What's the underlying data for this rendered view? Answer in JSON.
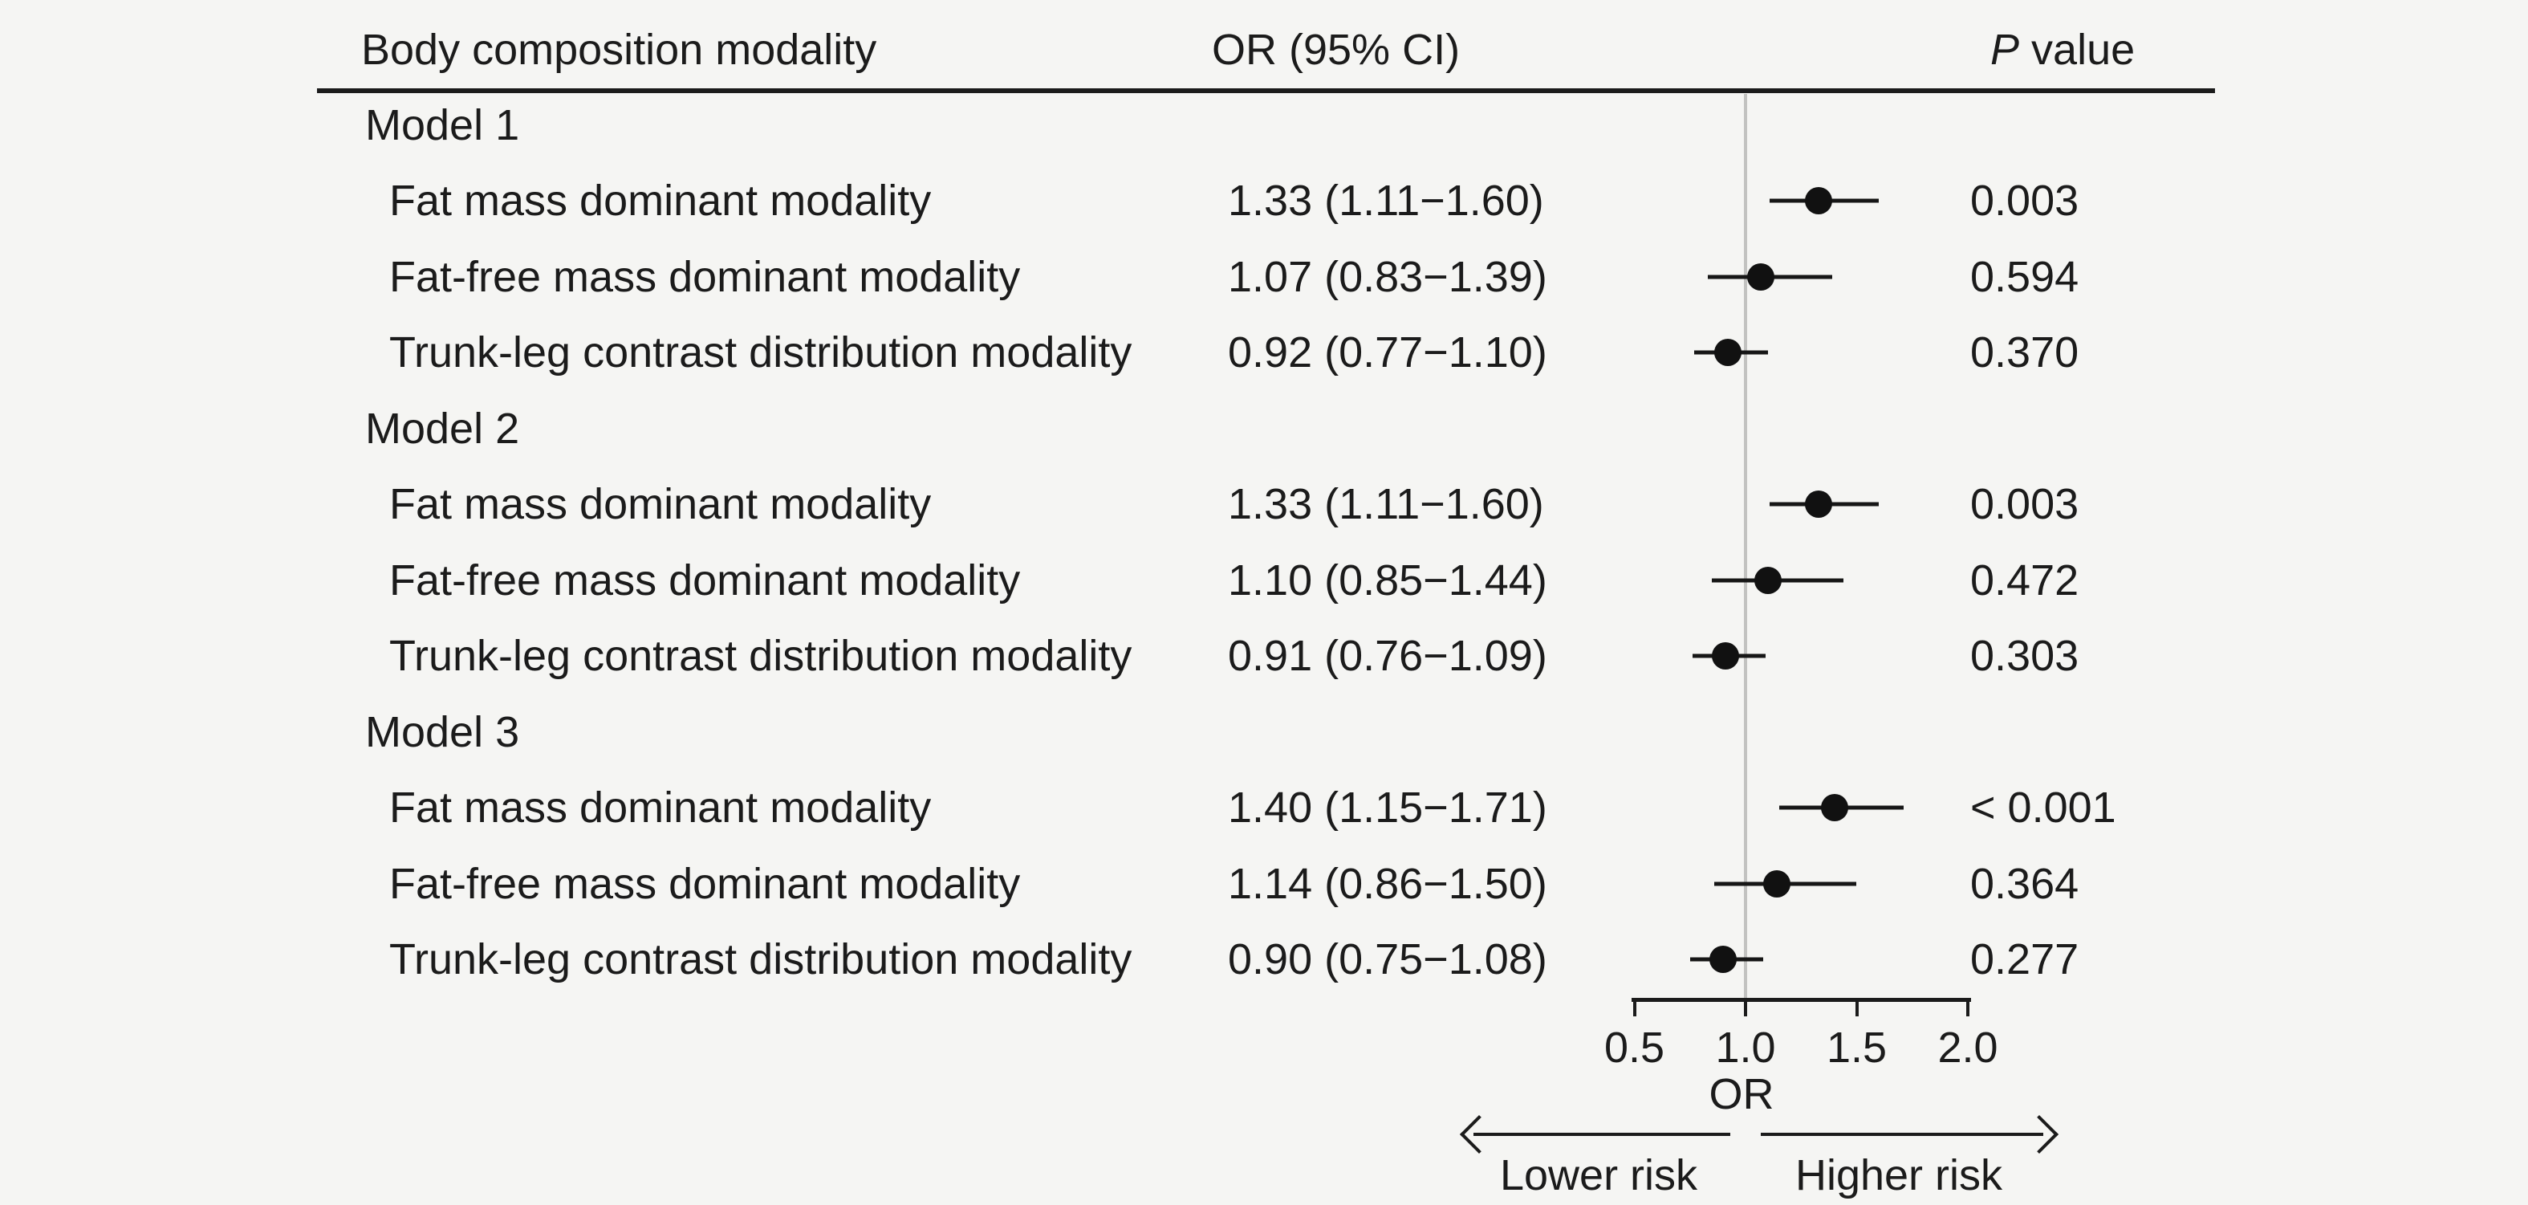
{
  "figure": {
    "background": "#f5f5f3",
    "text_color": "#1b1b1b",
    "reference_line_color": "#c2c2c0",
    "marker_color": "#111111"
  },
  "header": {
    "col_modality": "Body composition modality",
    "col_or": "OR (95% CI)",
    "p_italic": "P",
    "p_rest": " value"
  },
  "chart_data": {
    "type": "forest",
    "xlabel": "OR",
    "x_ticks": [
      0.5,
      1.0,
      1.5,
      2.0
    ],
    "x_tick_labels": [
      "0.5",
      "1.0",
      "1.5",
      "2.0"
    ],
    "x_range_shown": [
      0.5,
      2.0
    ],
    "reference_line": 1.0,
    "grid": false,
    "direction_labels": {
      "left": "Lower risk",
      "right": "Higher risk"
    },
    "groups": [
      {
        "label": "Model 1",
        "rows": [
          {
            "label": "Fat mass dominant modality",
            "or": 1.33,
            "ci_low": 1.11,
            "ci_high": 1.6,
            "or_text": "1.33 (1.11−1.60)",
            "p": "0.003"
          },
          {
            "label": "Fat-free mass dominant modality",
            "or": 1.07,
            "ci_low": 0.83,
            "ci_high": 1.39,
            "or_text": "1.07 (0.83−1.39)",
            "p": "0.594"
          },
          {
            "label": "Trunk-leg contrast distribution modality",
            "or": 0.92,
            "ci_low": 0.77,
            "ci_high": 1.1,
            "or_text": "0.92 (0.77−1.10)",
            "p": "0.370"
          }
        ]
      },
      {
        "label": "Model 2",
        "rows": [
          {
            "label": "Fat mass dominant modality",
            "or": 1.33,
            "ci_low": 1.11,
            "ci_high": 1.6,
            "or_text": "1.33 (1.11−1.60)",
            "p": "0.003"
          },
          {
            "label": "Fat-free mass dominant modality",
            "or": 1.1,
            "ci_low": 0.85,
            "ci_high": 1.44,
            "or_text": "1.10 (0.85−1.44)",
            "p": "0.472"
          },
          {
            "label": "Trunk-leg contrast distribution modality",
            "or": 0.91,
            "ci_low": 0.76,
            "ci_high": 1.09,
            "or_text": "0.91 (0.76−1.09)",
            "p": "0.303"
          }
        ]
      },
      {
        "label": "Model 3",
        "rows": [
          {
            "label": "Fat mass dominant modality",
            "or": 1.4,
            "ci_low": 1.15,
            "ci_high": 1.71,
            "or_text": "1.40 (1.15−1.71)",
            "p": "< 0.001"
          },
          {
            "label": "Fat-free mass dominant modality",
            "or": 1.14,
            "ci_low": 0.86,
            "ci_high": 1.5,
            "or_text": "1.14 (0.86−1.50)",
            "p": "0.364"
          },
          {
            "label": "Trunk-leg contrast distribution modality",
            "or": 0.9,
            "ci_low": 0.75,
            "ci_high": 1.08,
            "or_text": "0.90 (0.75−1.08)",
            "p": "0.277"
          }
        ]
      }
    ]
  }
}
